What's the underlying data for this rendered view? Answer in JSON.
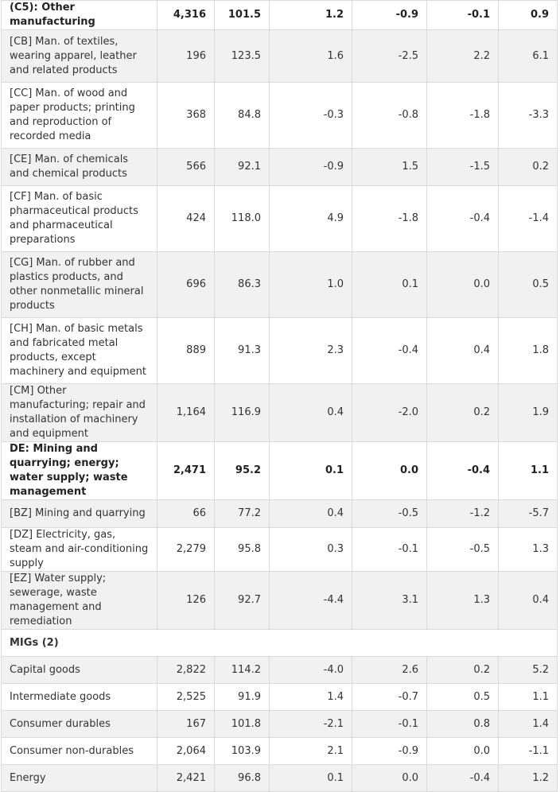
{
  "rows": [
    {
      "label": "(C5): Other manufacturing",
      "v": [
        "4,316",
        "101.5",
        "1.2",
        "-0.9",
        "-0.1",
        "0.9"
      ],
      "bold": true,
      "shade": false,
      "h": 37
    },
    {
      "label": "[CB] Man. of textiles, wearing apparel, leather and related products",
      "v": [
        "196",
        "123.5",
        "1.6",
        "-2.5",
        "2.2",
        "6.1"
      ],
      "bold": false,
      "shade": true,
      "h": 66
    },
    {
      "label": "[CC] Man. of wood and paper products; printing and reproduction of recorded media",
      "v": [
        "368",
        "84.8",
        "-0.3",
        "-0.8",
        "-1.8",
        "-3.3"
      ],
      "bold": false,
      "shade": false,
      "h": 83
    },
    {
      "label": "[CE] Man. of chemicals and chemical products",
      "v": [
        "566",
        "92.1",
        "-0.9",
        "1.5",
        "-1.5",
        "0.2"
      ],
      "bold": false,
      "shade": true,
      "h": 47
    },
    {
      "label": "[CF] Man. of basic pharmaceutical products and pharmaceutical preparations",
      "v": [
        "424",
        "118.0",
        "4.9",
        "-1.8",
        "-0.4",
        "-1.4"
      ],
      "bold": false,
      "shade": false,
      "h": 83
    },
    {
      "label": "[CG] Man. of rubber and plastics products, and other nonmetallic mineral products",
      "v": [
        "696",
        "86.3",
        "1.0",
        "0.1",
        "0.0",
        "0.5"
      ],
      "bold": false,
      "shade": true,
      "h": 83
    },
    {
      "label": "[CH] Man. of basic metals and fabricated metal products, except machinery and equipment",
      "v": [
        "889",
        "91.3",
        "2.3",
        "-0.4",
        "0.4",
        "1.8"
      ],
      "bold": false,
      "shade": false,
      "h": 83
    },
    {
      "label": "[CM] Other manufacturing; repair and installation of machinery and equipment",
      "v": [
        "1,164",
        "116.9",
        "0.4",
        "-2.0",
        "0.2",
        "1.9"
      ],
      "bold": false,
      "shade": true,
      "h": 65
    },
    {
      "label": "DE: Mining and quarrying; energy; water supply; waste management",
      "v": [
        "2,471",
        "95.2",
        "0.1",
        "0.0",
        "-0.4",
        "1.1"
      ],
      "bold": true,
      "shade": false,
      "h": 65
    },
    {
      "label": "[BZ] Mining and quarrying",
      "v": [
        "66",
        "77.2",
        "0.4",
        "-0.5",
        "-1.2",
        "-5.7"
      ],
      "bold": false,
      "shade": true,
      "h": 35
    },
    {
      "label": "[DZ] Electricity, gas, steam and air-conditioning supply",
      "v": [
        "2,279",
        "95.8",
        "0.3",
        "-0.1",
        "-0.5",
        "1.3"
      ],
      "bold": false,
      "shade": false,
      "h": 47
    },
    {
      "label": "[EZ] Water supply; sewerage, waste management and remediation",
      "v": [
        "126",
        "92.7",
        "-4.4",
        "3.1",
        "1.3",
        "0.4"
      ],
      "bold": false,
      "shade": true,
      "h": 65
    }
  ],
  "section": {
    "label": "MIGs (2)",
    "h": 34
  },
  "mig_rows": [
    {
      "label": "Capital goods",
      "v": [
        "2,822",
        "114.2",
        "-4.0",
        "2.6",
        "0.2",
        "5.2"
      ],
      "shade": true,
      "h": 34
    },
    {
      "label": "Intermediate goods",
      "v": [
        "2,525",
        "91.9",
        "1.4",
        "-0.7",
        "0.5",
        "1.1"
      ],
      "shade": false,
      "h": 34
    },
    {
      "label": "Consumer durables",
      "v": [
        "167",
        "101.8",
        "-2.1",
        "-0.1",
        "0.8",
        "1.4"
      ],
      "shade": true,
      "h": 34
    },
    {
      "label": "Consumer non-durables",
      "v": [
        "2,064",
        "103.9",
        "2.1",
        "-0.9",
        "0.0",
        "-1.1"
      ],
      "shade": false,
      "h": 34
    },
    {
      "label": "Energy",
      "v": [
        "2,421",
        "96.8",
        "0.1",
        "0.0",
        "-0.4",
        "1.2"
      ],
      "shade": true,
      "h": 34
    }
  ]
}
